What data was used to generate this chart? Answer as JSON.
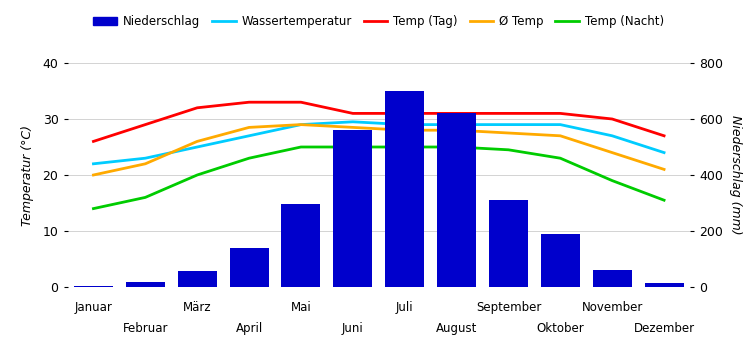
{
  "months": [
    "Januar",
    "Februar",
    "März",
    "April",
    "Mai",
    "Juni",
    "Juli",
    "August",
    "September",
    "Oktober",
    "November",
    "Dezember"
  ],
  "niederschlag": [
    5,
    18,
    58,
    140,
    295,
    560,
    700,
    620,
    310,
    190,
    60,
    13
  ],
  "wassertemperatur": [
    22,
    23,
    25,
    27,
    29,
    29.5,
    29,
    29,
    29,
    29,
    27,
    24
  ],
  "temp_tag": [
    26,
    29,
    32,
    33,
    33,
    31,
    31,
    31,
    31,
    31,
    30,
    27
  ],
  "avg_temp": [
    20,
    22,
    26,
    28.5,
    29,
    28.5,
    28,
    28,
    27.5,
    27,
    24,
    21
  ],
  "temp_nacht": [
    14,
    16,
    20,
    23,
    25,
    25,
    25,
    25,
    24.5,
    23,
    19,
    15.5
  ],
  "bar_color": "#0000cc",
  "wasser_color": "#00ccff",
  "tag_color": "#ff0000",
  "avg_color": "#ffaa00",
  "nacht_color": "#00cc00",
  "ylabel_left": "Temperatur (°C)",
  "ylabel_right": "Niederschlag (mm)",
  "ylim_temp": [
    0,
    40
  ],
  "ylim_precip": [
    0,
    800
  ],
  "legend_labels": [
    "Niederschlag",
    "Wassertemperatur",
    "Temp (Tag)",
    "Ø Temp",
    "Temp (Nacht)"
  ]
}
